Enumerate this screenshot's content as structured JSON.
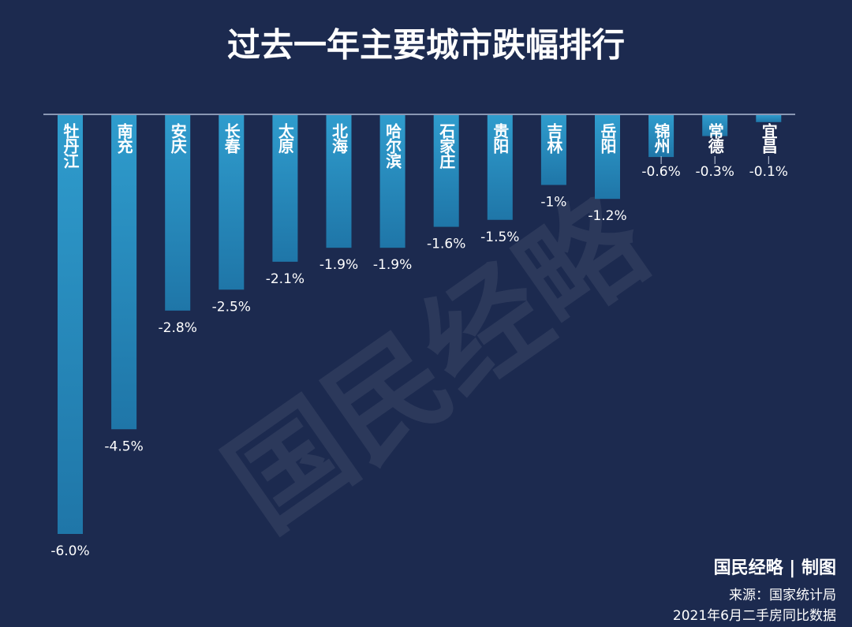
{
  "chart_data": {
    "type": "bar",
    "title": "过去一年主要城市跌幅排行",
    "categories": [
      "牡丹江",
      "南充",
      "安庆",
      "长春",
      "太原",
      "北海",
      "哈尔滨",
      "石家庄",
      "贵阳",
      "吉林",
      "岳阳",
      "锦州",
      "常德",
      "宜昌"
    ],
    "values": [
      -6.0,
      -4.5,
      -2.8,
      -2.5,
      -2.1,
      -1.9,
      -1.9,
      -1.6,
      -1.5,
      -1,
      -1.2,
      -0.6,
      -0.3,
      -0.1
    ],
    "value_labels": [
      "-6.0%",
      "-4.5%",
      "-2.8%",
      "-2.5%",
      "-2.1%",
      "-1.9%",
      "-1.9%",
      "-1.6%",
      "-1.5%",
      "-1%",
      "-1.2%",
      "-0.6%",
      "-0.3%",
      "-0.1%"
    ],
    "color": "#2a93c4",
    "watermark": "国民经略",
    "credit": "国民经略 | 制图",
    "source": "来源：国家统计局",
    "note": "2021年6月二手房同比数据"
  }
}
